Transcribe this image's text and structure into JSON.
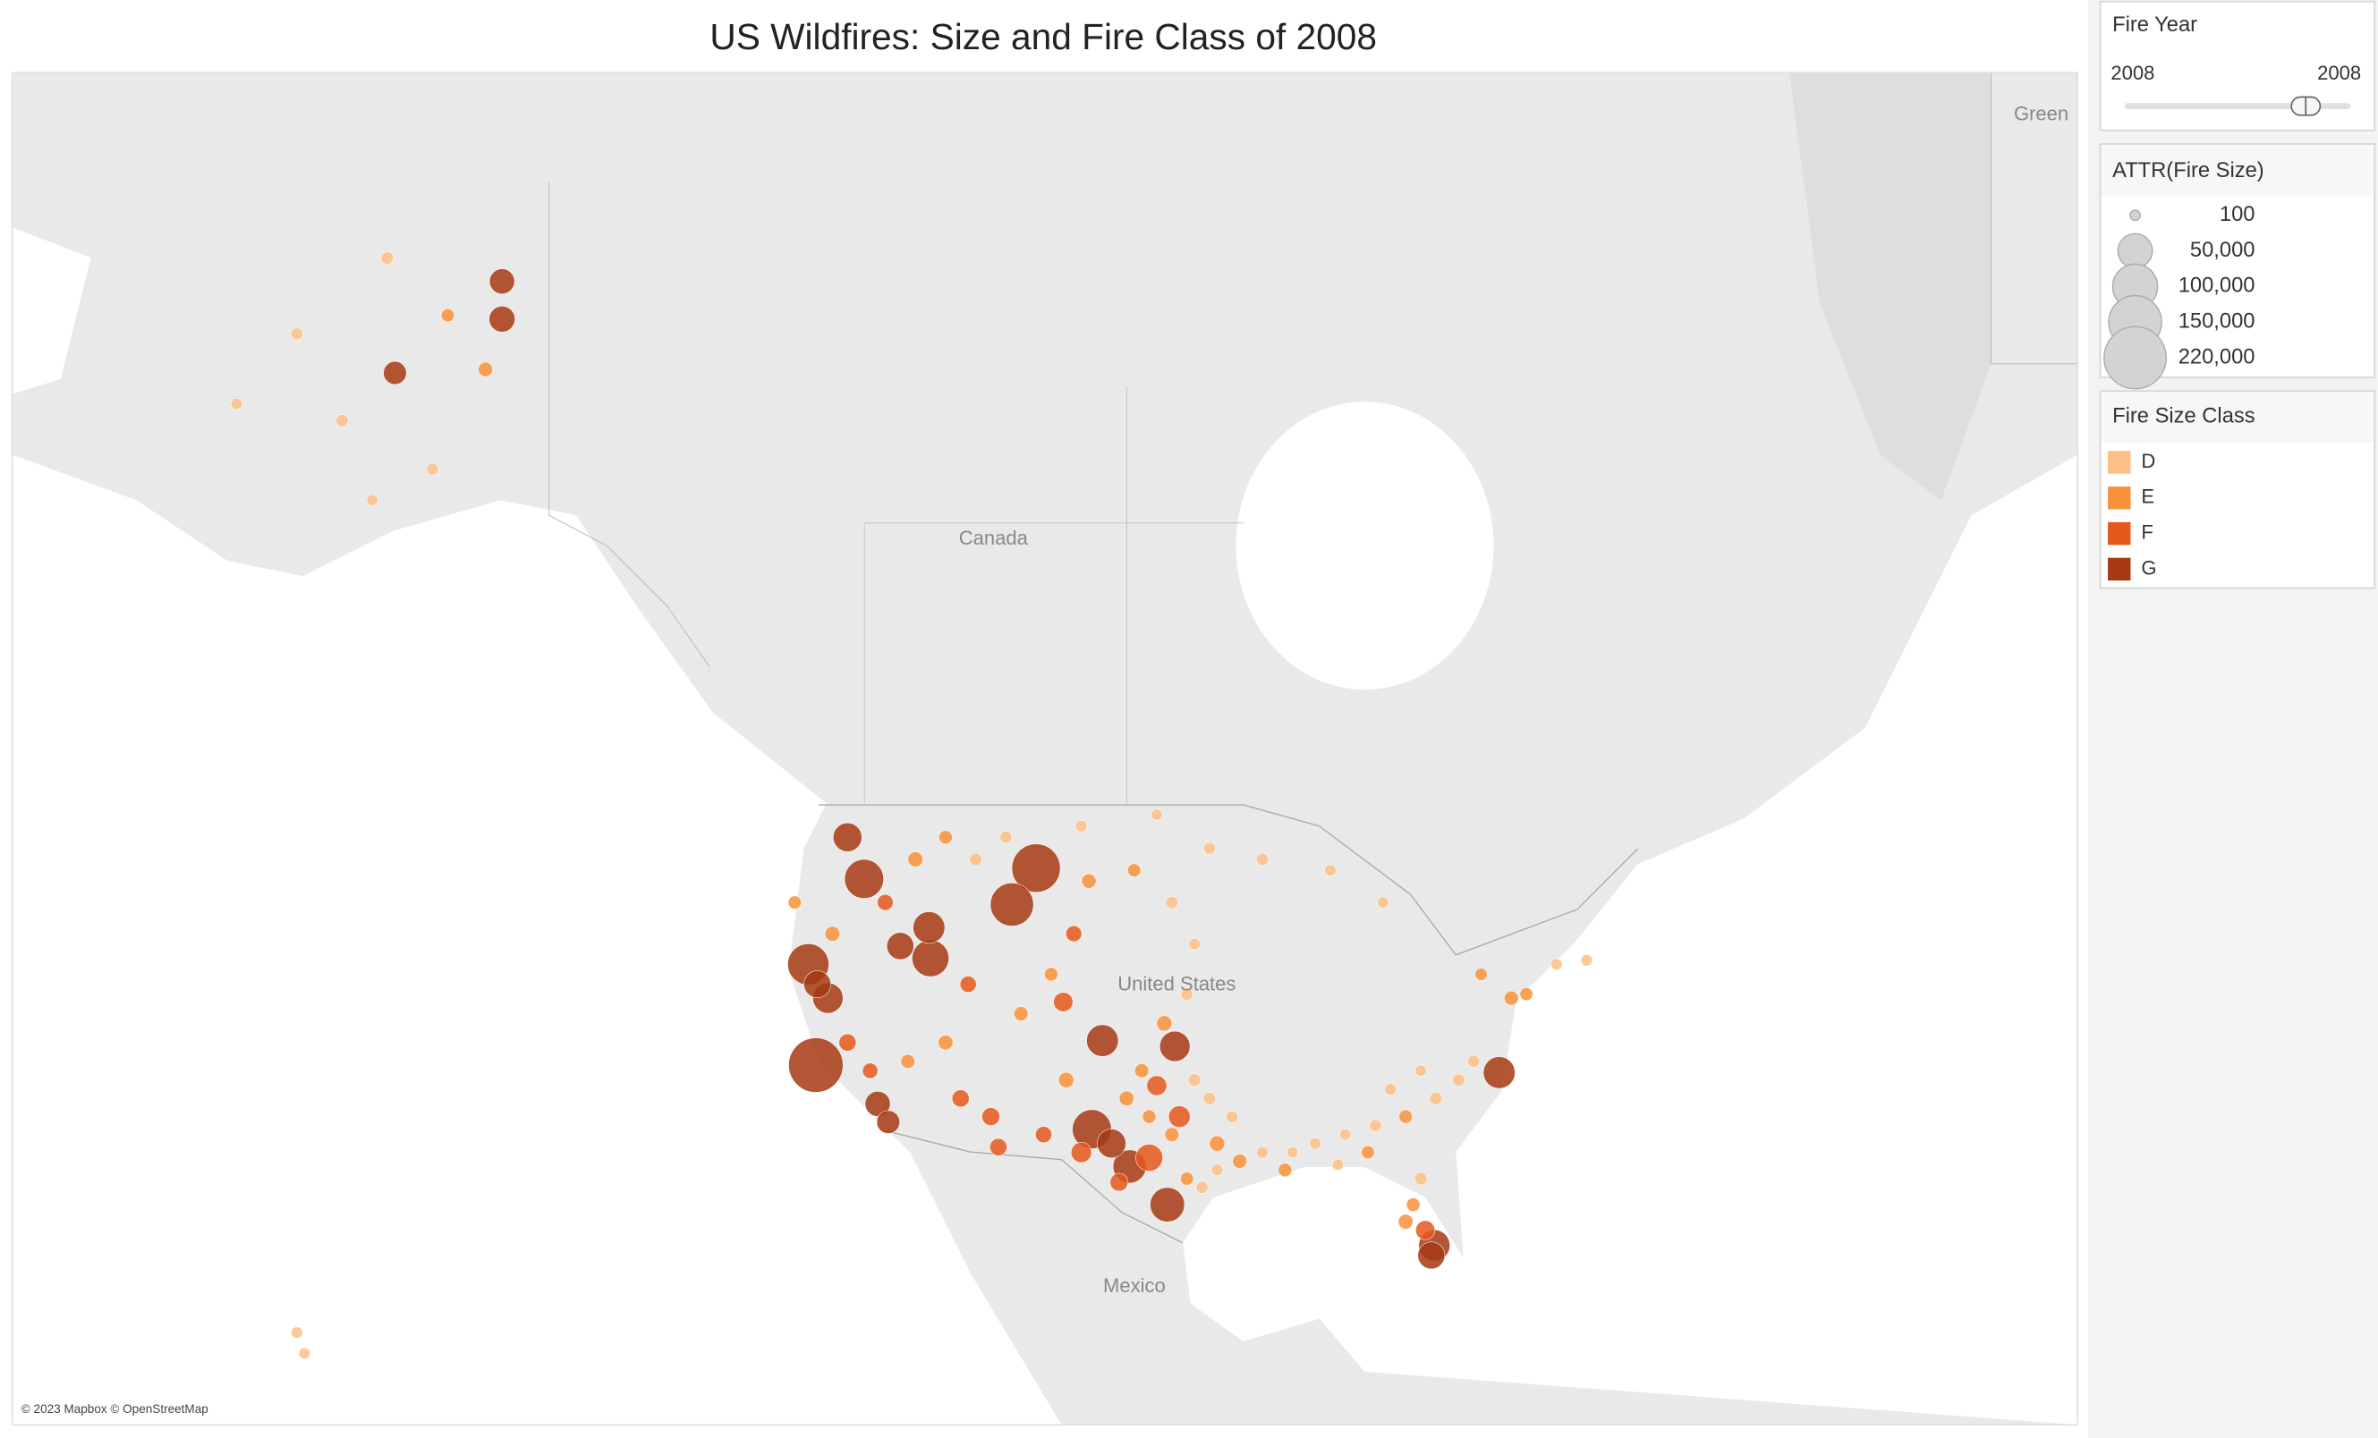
{
  "title": "US Wildfires: Size and Fire Class of 2008",
  "map_labels": {
    "canada": "Canada",
    "united_states": "United States",
    "mexico": "Mexico",
    "greenland": "Green"
  },
  "attribution": "© 2023 Mapbox © OpenStreetMap",
  "fire_year": {
    "title": "Fire Year",
    "start": 2008,
    "end": 2008
  },
  "size_legend": {
    "title": "ATTR(Fire Size)",
    "items": [
      {
        "value": 100,
        "label": "100"
      },
      {
        "value": 50000,
        "label": "50,000"
      },
      {
        "value": 100000,
        "label": "100,000"
      },
      {
        "value": 150000,
        "label": "150,000"
      },
      {
        "value": 220000,
        "label": "220,000"
      }
    ]
  },
  "class_legend": {
    "title": "Fire Size Class",
    "items": [
      {
        "label": "D",
        "color": "#fdbf86"
      },
      {
        "label": "E",
        "color": "#f8923a"
      },
      {
        "label": "F",
        "color": "#e5581c"
      },
      {
        "label": "G",
        "color": "#a63a14"
      }
    ]
  },
  "fires": {
    "lon": [
      -121.6,
      -107.0,
      -108.6,
      -122.1,
      -118.4,
      -114.0,
      -114.1,
      -116.0,
      -102.6,
      -97.8,
      -103.3,
      -100.8,
      -98.3,
      -76.3,
      -80.6,
      -142.4,
      -142.4,
      -149.5,
      -119.5,
      -120.8,
      -121.5,
      -117.5,
      -116.8,
      -102.0,
      -99.5,
      -97.5,
      -99.0,
      -105.2,
      -110.0,
      -112.0,
      -106.5,
      -95.0,
      -93.5,
      -90.5,
      -85.0,
      -82.5,
      -80.5,
      -79.0,
      -78.0,
      -81.5,
      -83.5,
      -84.5,
      -86.5,
      -88.5,
      -90.0,
      -92.0,
      -94.0,
      -95.5,
      -96.5,
      -97.0,
      -96.0,
      -95.0,
      -98.0,
      -99.5,
      -101.0,
      -100.0,
      -98.5,
      -97.0,
      -96.5,
      -98.0,
      -100.5,
      -103.5,
      -104.5,
      -106.0,
      -108.0,
      -111.5,
      -113.0,
      -115.5,
      -118.0,
      -119.5,
      -123.0,
      -120.5,
      -117.0,
      -115.0,
      -113.0,
      -111.0,
      -109.0,
      -104.0,
      -99.0,
      -95.5,
      -92.0,
      -87.5,
      -84.0,
      -77.5,
      -75.5,
      -74.5,
      -72.5,
      -70.5,
      -82.0,
      -81.5,
      -82.5,
      -81.2,
      -80.8,
      -87.0,
      -155.5,
      -156.0,
      -147.0,
      -151.0,
      -153.0,
      -156.0,
      -146.0,
      -150.0,
      -143.5,
      -160.0,
      -105.0,
      -104.0,
      -101.5,
      -109.5
    ],
    "lat": [
      36.3,
      46.1,
      44.4,
      41.5,
      45.6,
      41.8,
      43.3,
      42.4,
      37.6,
      37.3,
      32.8,
      30.7,
      28.5,
      35.9,
      26.1,
      66.9,
      65.9,
      64.4,
      47.5,
      39.8,
      40.5,
      34.2,
      33.2,
      32.0,
      31.2,
      33.5,
      35.2,
      39.6,
      33.5,
      34.5,
      32.5,
      32.0,
      31.0,
      30.5,
      31.5,
      33.5,
      34.5,
      35.5,
      36.5,
      36.0,
      35.0,
      33.0,
      32.5,
      32.0,
      31.5,
      31.5,
      33.5,
      34.5,
      35.5,
      30.0,
      29.5,
      30.5,
      32.5,
      33.5,
      34.5,
      36.0,
      38.5,
      40.0,
      42.5,
      44.5,
      46.0,
      45.5,
      43.0,
      41.0,
      39.0,
      40.5,
      37.5,
      36.5,
      36.0,
      37.5,
      44.5,
      43.0,
      44.5,
      46.5,
      47.5,
      46.5,
      47.5,
      48.0,
      48.5,
      47.0,
      46.5,
      46.0,
      44.5,
      41.0,
      39.8,
      40.0,
      41.5,
      41.7,
      28.5,
      30.0,
      27.5,
      27.0,
      25.5,
      30.8,
      19.5,
      20.8,
      61.5,
      60.5,
      63.0,
      65.5,
      66.0,
      67.5,
      64.5,
      63.5,
      35.5,
      31.5,
      29.8,
      31.8
    ],
    "size": [
      160000,
      120000,
      90000,
      80000,
      70000,
      60000,
      40000,
      25000,
      40000,
      35000,
      70000,
      45000,
      50000,
      40000,
      38000,
      20000,
      22000,
      15000,
      30000,
      35000,
      25000,
      20000,
      15000,
      30000,
      25000,
      12000,
      9000,
      8000,
      6000,
      5000,
      4000,
      3000,
      2000,
      1500,
      1200,
      1500,
      1000,
      800,
      600,
      400,
      500,
      700,
      300,
      400,
      300,
      500,
      600,
      800,
      1000,
      1200,
      700,
      500,
      2000,
      1500,
      2500,
      1800,
      3000,
      600,
      400,
      800,
      1200,
      2200,
      3500,
      1500,
      2000,
      4000,
      2500,
      1800,
      3000,
      5000,
      1200,
      2600,
      3500,
      2800,
      1500,
      900,
      700,
      500,
      400,
      600,
      800,
      400,
      300,
      700,
      2000,
      1100,
      400,
      500,
      1500,
      1000,
      2500,
      8000,
      25000,
      400,
      300,
      400,
      500,
      300,
      800,
      600,
      1200,
      900,
      2200,
      400,
      3000,
      10000,
      6000,
      5000
    ],
    "class": [
      "G",
      "G",
      "G",
      "G",
      "G",
      "G",
      "G",
      "G",
      "G",
      "G",
      "G",
      "G",
      "G",
      "G",
      "G",
      "G",
      "G",
      "G",
      "G",
      "G",
      "G",
      "G",
      "G",
      "G",
      "F",
      "F",
      "F",
      "F",
      "F",
      "F",
      "F",
      "E",
      "E",
      "E",
      "E",
      "E",
      "D",
      "D",
      "D",
      "D",
      "D",
      "D",
      "D",
      "D",
      "D",
      "D",
      "D",
      "D",
      "D",
      "E",
      "D",
      "D",
      "E",
      "E",
      "E",
      "E",
      "E",
      "D",
      "D",
      "D",
      "E",
      "E",
      "F",
      "E",
      "E",
      "F",
      "E",
      "E",
      "F",
      "F",
      "E",
      "E",
      "F",
      "E",
      "E",
      "D",
      "D",
      "D",
      "D",
      "D",
      "D",
      "D",
      "D",
      "E",
      "E",
      "E",
      "D",
      "D",
      "E",
      "D",
      "E",
      "F",
      "G",
      "D",
      "D",
      "D",
      "D",
      "D",
      "D",
      "D",
      "E",
      "D",
      "E",
      "D",
      "E",
      "F",
      "F",
      "F"
    ]
  }
}
